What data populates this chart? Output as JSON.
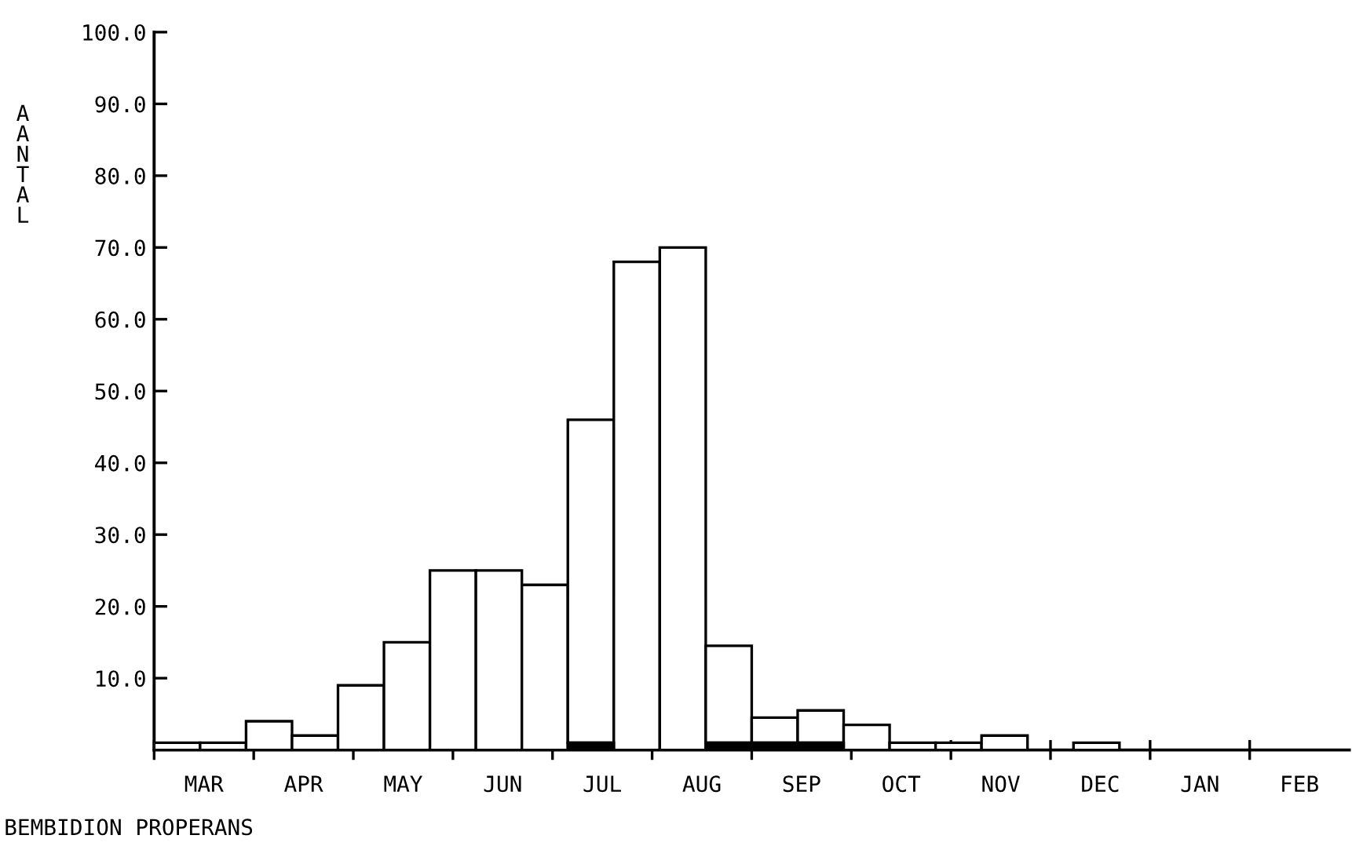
{
  "chart_data": {
    "type": "bar",
    "title": "BEMBIDION PROPERANS",
    "ylabel": "AANTAL",
    "categories": [
      null,
      null,
      null,
      null,
      null,
      null,
      null,
      null,
      null,
      null,
      null,
      null,
      null,
      null,
      null,
      null,
      null,
      null,
      null,
      null,
      null,
      null,
      null,
      null,
      null,
      null
    ],
    "stacked": true,
    "series": [
      {
        "color": "#000000",
        "values": [
          0,
          0,
          0,
          0,
          0,
          0,
          0,
          0,
          0,
          1,
          0,
          0,
          1,
          1,
          1,
          0,
          0,
          0,
          0,
          0,
          0,
          0,
          0,
          0,
          0,
          0
        ]
      },
      {
        "color": "#ffffff",
        "values": [
          1,
          1,
          4,
          2,
          9,
          15,
          25,
          25,
          23,
          45,
          68,
          70,
          13.5,
          3.5,
          4.5,
          3.5,
          1,
          1,
          2,
          0,
          1,
          0,
          0,
          0,
          0,
          0
        ]
      }
    ],
    "annotations": [
      "MAR",
      "APR",
      "MAY",
      "JUN",
      "JUL",
      "AUG",
      "SEP",
      "OCT",
      "NOV",
      "DEC",
      "JAN",
      "FEB"
    ],
    "ylim": [
      0,
      100
    ],
    "yticks": [
      {
        "value": 10,
        "label": "10.0"
      },
      {
        "value": 20,
        "label": "20.0"
      },
      {
        "value": 30,
        "label": "30.0"
      },
      {
        "value": 40,
        "label": "40.0"
      },
      {
        "value": 50,
        "label": "50.0"
      },
      {
        "value": 60,
        "label": "60.0"
      },
      {
        "value": 70,
        "label": "70.0"
      },
      {
        "value": 80,
        "label": "80.0"
      },
      {
        "value": 90,
        "label": "90.0"
      },
      {
        "value": 100,
        "label": "100.0"
      }
    ],
    "grid": false
  }
}
